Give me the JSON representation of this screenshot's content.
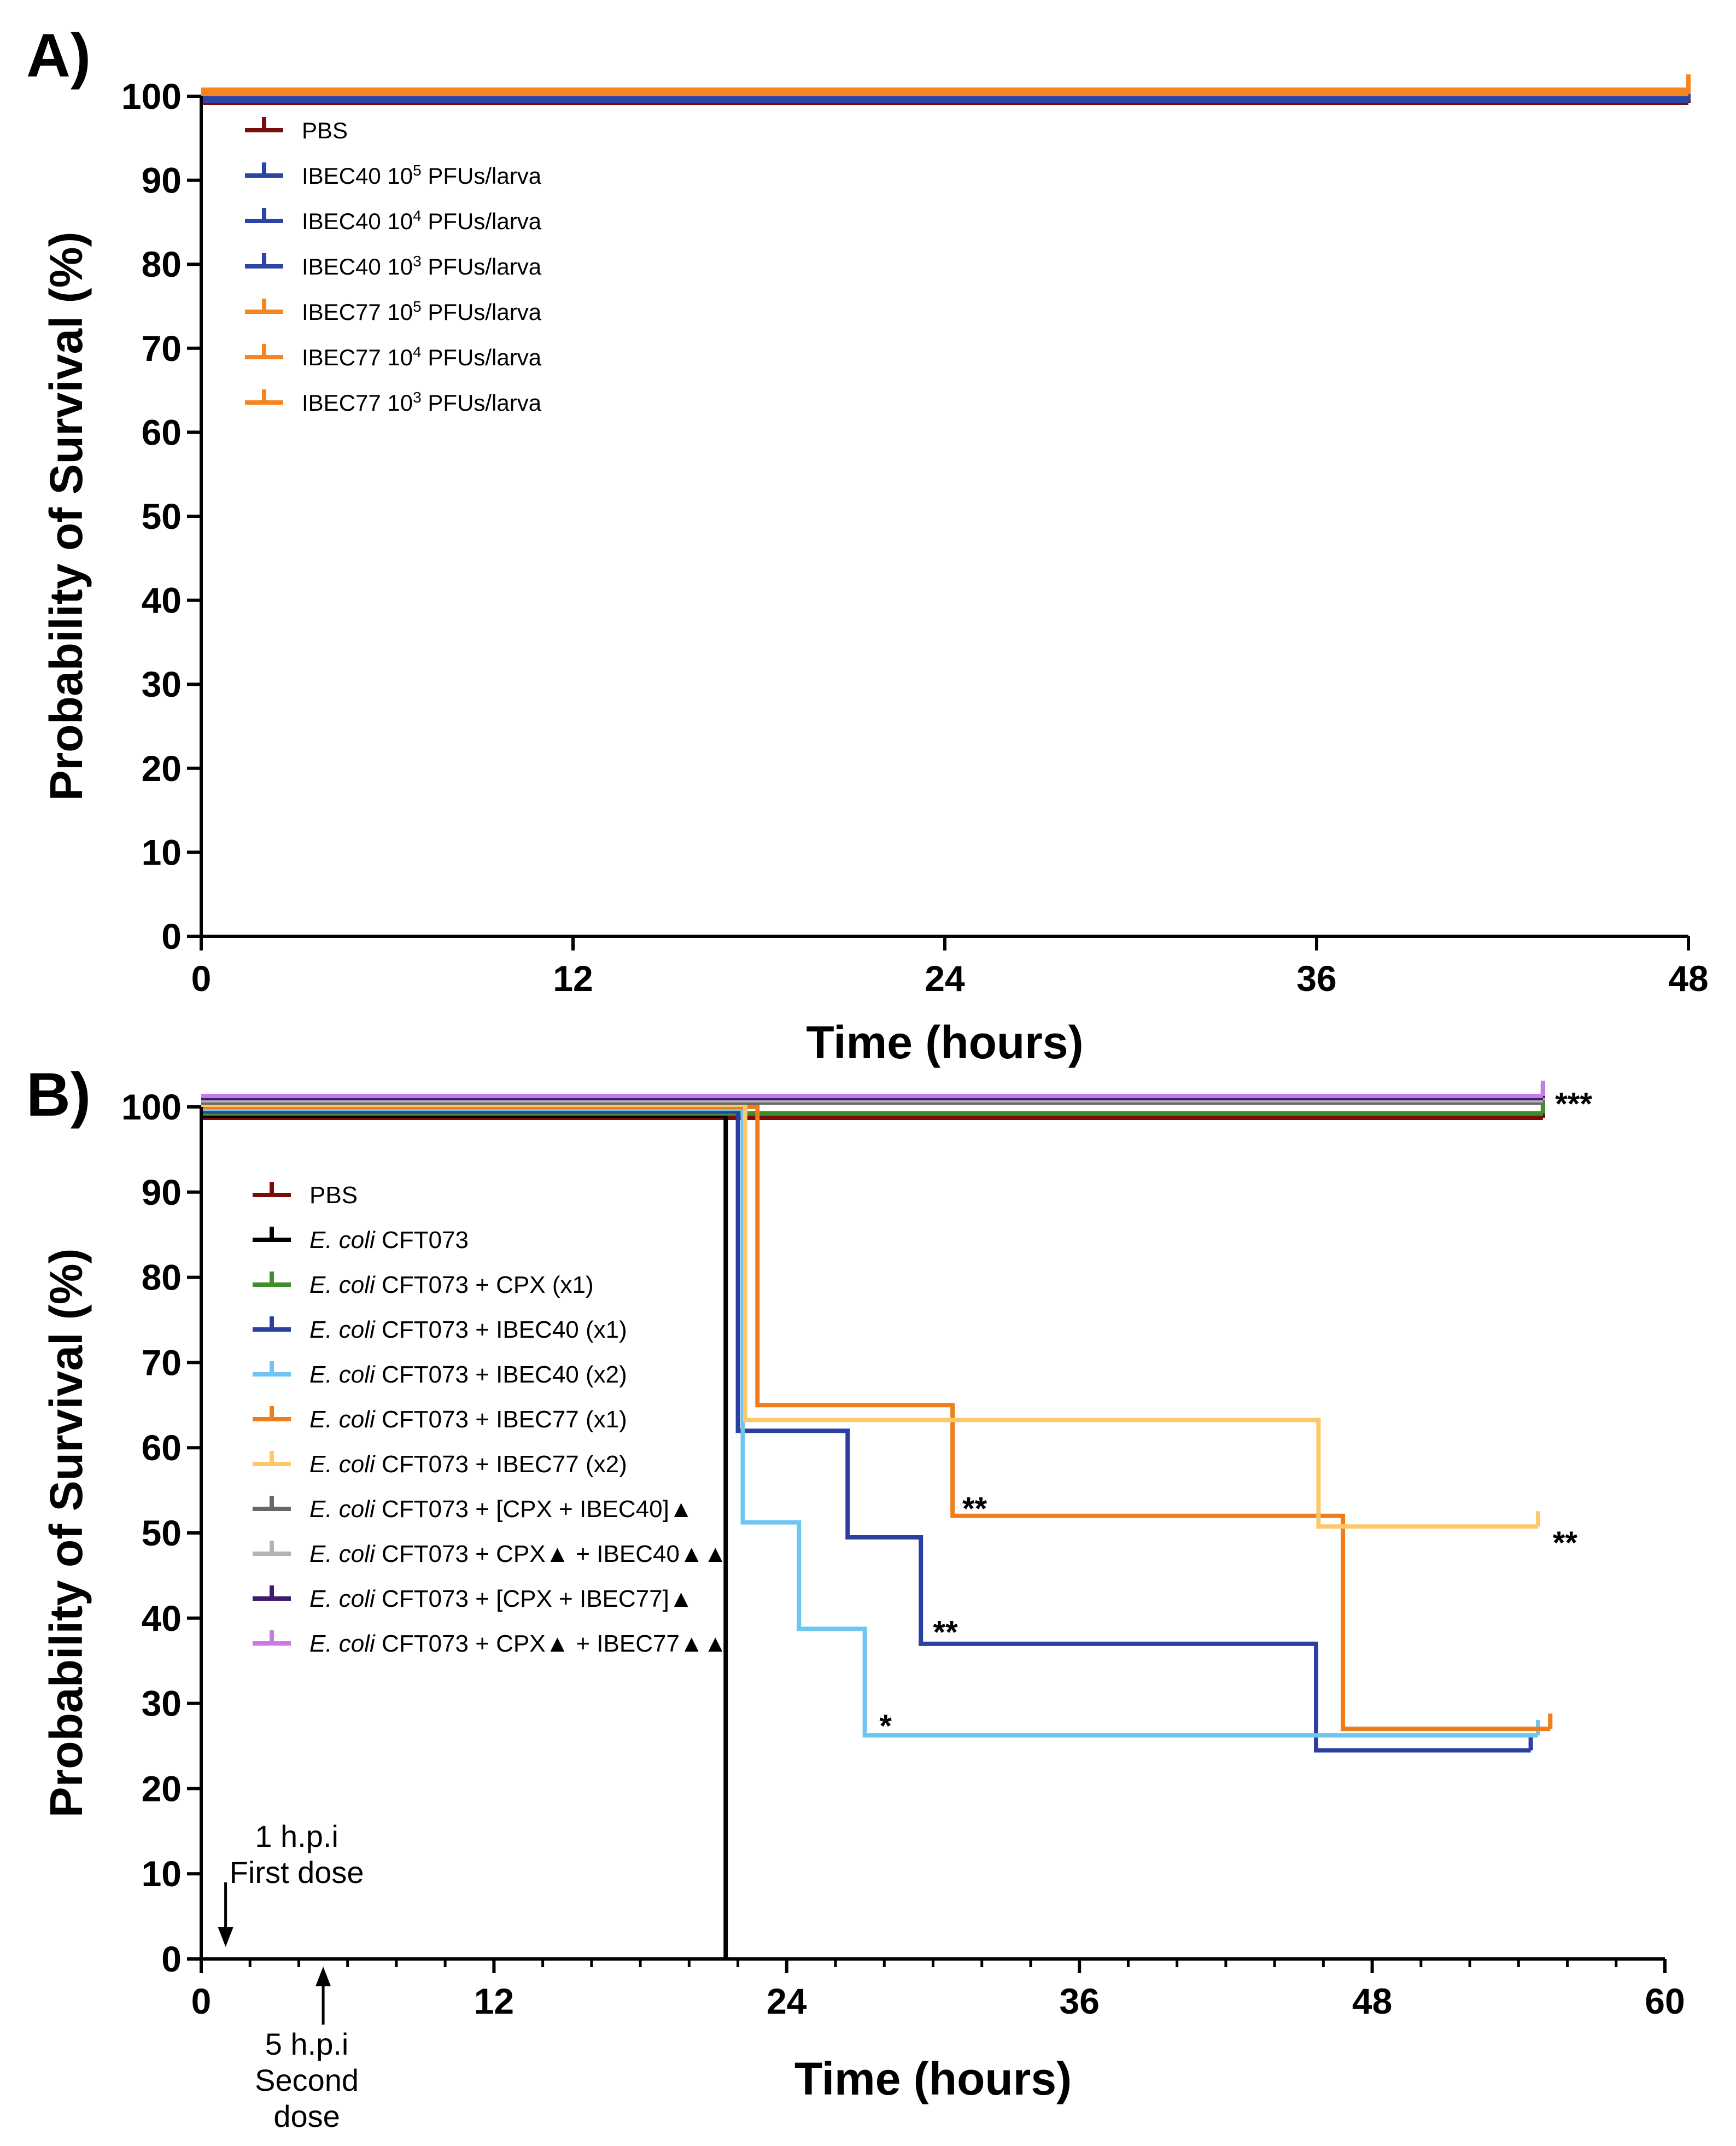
{
  "chart_data": [
    {
      "type": "line",
      "subtype": "kaplan-meier",
      "panel_label": "A)",
      "xlabel": "Time (hours)",
      "ylabel": "Probability of Survival (%)",
      "xlim": [
        0,
        48
      ],
      "ylim": [
        0,
        100
      ],
      "xticks": [
        0,
        12,
        24,
        36,
        48
      ],
      "yticks": [
        0,
        10,
        20,
        30,
        40,
        50,
        60,
        70,
        80,
        90,
        100
      ],
      "xticks_labels": [
        "0",
        "12",
        "24",
        "36",
        "48"
      ],
      "yticks_labels": [
        "0",
        "10",
        "20",
        "30",
        "40",
        "50",
        "60",
        "70",
        "80",
        "90",
        "100"
      ],
      "legend_position": "top-left",
      "series": [
        {
          "name": "PBS",
          "label": "PBS",
          "sup": "",
          "suffix": "",
          "color": "#7a0c0c",
          "points": [
            [
              0,
              100
            ],
            [
              48,
              100
            ]
          ]
        },
        {
          "name": "IBEC40 10^5 PFUs/larva",
          "label": "IBEC40 10",
          "sup": "5",
          "suffix": " PFUs/larva",
          "color": "#2b45a6",
          "points": [
            [
              0,
              100
            ],
            [
              48,
              100
            ]
          ]
        },
        {
          "name": "IBEC40 10^4 PFUs/larva",
          "label": "IBEC40 10",
          "sup": "4",
          "suffix": " PFUs/larva",
          "color": "#2b45a6",
          "points": [
            [
              0,
              100
            ],
            [
              48,
              100
            ]
          ]
        },
        {
          "name": "IBEC40 10^3 PFUs/larva",
          "label": "IBEC40 10",
          "sup": "3",
          "suffix": " PFUs/larva",
          "color": "#2b45a6",
          "points": [
            [
              0,
              100
            ],
            [
              48,
              100
            ]
          ]
        },
        {
          "name": "IBEC77 10^5 PFUs/larva",
          "label": "IBEC77 10",
          "sup": "5",
          "suffix": " PFUs/larva",
          "color": "#f4851f",
          "points": [
            [
              0,
              100
            ],
            [
              48,
              100
            ]
          ]
        },
        {
          "name": "IBEC77 10^4 PFUs/larva",
          "label": "IBEC77 10",
          "sup": "4",
          "suffix": " PFUs/larva",
          "color": "#f4851f",
          "points": [
            [
              0,
              100
            ],
            [
              48,
              100
            ]
          ]
        },
        {
          "name": "IBEC77 10^3 PFUs/larva",
          "label": "IBEC77 10",
          "sup": "3",
          "suffix": " PFUs/larva",
          "color": "#f4851f",
          "points": [
            [
              0,
              100
            ],
            [
              48,
              100
            ]
          ]
        }
      ],
      "annotations": []
    },
    {
      "type": "line",
      "subtype": "kaplan-meier",
      "panel_label": "B)",
      "xlabel": "Time (hours)",
      "ylabel": "Probability of Survival (%)",
      "xlim": [
        0,
        60
      ],
      "ylim": [
        0,
        100
      ],
      "xticks": [
        0,
        12,
        24,
        36,
        48,
        60
      ],
      "yticks": [
        0,
        10,
        20,
        30,
        40,
        50,
        60,
        70,
        80,
        90,
        100
      ],
      "xticks_labels": [
        "0",
        "12",
        "24",
        "36",
        "48",
        "60"
      ],
      "yticks_labels": [
        "0",
        "10",
        "20",
        "30",
        "40",
        "50",
        "60",
        "70",
        "80",
        "90",
        "100"
      ],
      "legend_position": "top-left",
      "series": [
        {
          "name": "PBS",
          "italic": "",
          "label": "PBS",
          "color": "#7a0c0c",
          "points": [
            [
              0,
              100
            ],
            [
              55,
              100
            ]
          ]
        },
        {
          "name": "E. coli CFT073",
          "italic": "E. coli",
          "label": " CFT073",
          "color": "#000000",
          "points": [
            [
              0,
              100
            ],
            [
              21.5,
              100
            ],
            [
              21.5,
              0
            ]
          ]
        },
        {
          "name": "E. coli CFT073 + CPX (x1)",
          "italic": "E. coli",
          "label": " CFT073 + CPX (x1)",
          "color": "#3f8f29",
          "points": [
            [
              0,
              100
            ],
            [
              55,
              100
            ]
          ]
        },
        {
          "name": "E. coli CFT073 + IBEC40 (x1)",
          "italic": "E. coli",
          "label": " CFT073 + IBEC40 (x1)",
          "color": "#2b3fa0",
          "points": [
            [
              0,
              100
            ],
            [
              22,
              100
            ],
            [
              22,
              62.5
            ],
            [
              26.5,
              62.5
            ],
            [
              26.5,
              50
            ],
            [
              29.5,
              50
            ],
            [
              29.5,
              37.5
            ],
            [
              45.7,
              37.5
            ],
            [
              45.7,
              25
            ],
            [
              54.5,
              25
            ]
          ]
        },
        {
          "name": "E. coli CFT073 + IBEC40 (x2)",
          "italic": "E. coli",
          "label": " CFT073 + IBEC40 (x2)",
          "color": "#6ec6f0",
          "points": [
            [
              0,
              100
            ],
            [
              22.2,
              100
            ],
            [
              22.2,
              51.5
            ],
            [
              24.5,
              51.5
            ],
            [
              24.5,
              39
            ],
            [
              27.2,
              39
            ],
            [
              27.2,
              26.5
            ],
            [
              54.8,
              26.5
            ]
          ]
        },
        {
          "name": "E. coli CFT073 + IBEC77 (x1)",
          "italic": "E. coli",
          "label": " CFT073 + IBEC77 (x1)",
          "color": "#f07d1a",
          "points": [
            [
              0,
              100
            ],
            [
              22.8,
              100
            ],
            [
              22.8,
              65
            ],
            [
              30.8,
              65
            ],
            [
              30.8,
              52
            ],
            [
              46.8,
              52
            ],
            [
              46.8,
              27
            ],
            [
              55.3,
              27
            ]
          ]
        },
        {
          "name": "E. coli CFT073 + IBEC77 (x2)",
          "italic": "E. coli",
          "label": " CFT073 + IBEC77 (x2)",
          "color": "#fbc86a",
          "points": [
            [
              0,
              100
            ],
            [
              22.3,
              100
            ],
            [
              22.3,
              63
            ],
            [
              45.8,
              63
            ],
            [
              45.8,
              50.5
            ],
            [
              54.8,
              50.5
            ]
          ]
        },
        {
          "name": "E. coli CFT073 + [CPX + IBEC40]▲",
          "italic": "E. coli",
          "label": " CFT073 + [CPX + IBEC40]▲",
          "color": "#676767",
          "points": [
            [
              0,
              100
            ],
            [
              55,
              100
            ]
          ]
        },
        {
          "name": "E. coli CFT073 + CPX▲ + IBEC40▲▲",
          "italic": "E. coli",
          "label": " CFT073 + CPX▲ + IBEC40▲▲",
          "color": "#b3b3b3",
          "points": [
            [
              0,
              100
            ],
            [
              55,
              100
            ]
          ]
        },
        {
          "name": "E. coli CFT073 + [CPX + IBEC77]▲",
          "italic": "E. coli",
          "label": " CFT073 + [CPX + IBEC77]▲",
          "color": "#3d1a6e",
          "points": [
            [
              0,
              100
            ],
            [
              55,
              100
            ]
          ]
        },
        {
          "name": "E. coli CFT073 + CPX▲ + IBEC77▲▲",
          "italic": "E. coli",
          "label": " CFT073 + CPX▲ + IBEC77▲▲",
          "color": "#c77ae8",
          "points": [
            [
              0,
              100
            ],
            [
              55,
              100
            ]
          ]
        }
      ],
      "annotations": [
        {
          "text": "***",
          "x": 55.5,
          "y": 101
        },
        {
          "text": "**",
          "x": 31.2,
          "y": 53.5
        },
        {
          "text": "**",
          "x": 55.4,
          "y": 49.5
        },
        {
          "text": "**",
          "x": 30,
          "y": 39
        },
        {
          "text": "*",
          "x": 27.8,
          "y": 28
        }
      ],
      "dose_markers": [
        {
          "lines": [
            "1 h.p.i",
            "First dose"
          ],
          "x": 1,
          "direction": "down"
        },
        {
          "lines": [
            "5 h.p.i",
            "Second",
            "dose"
          ],
          "x": 5,
          "direction": "up"
        }
      ]
    }
  ]
}
